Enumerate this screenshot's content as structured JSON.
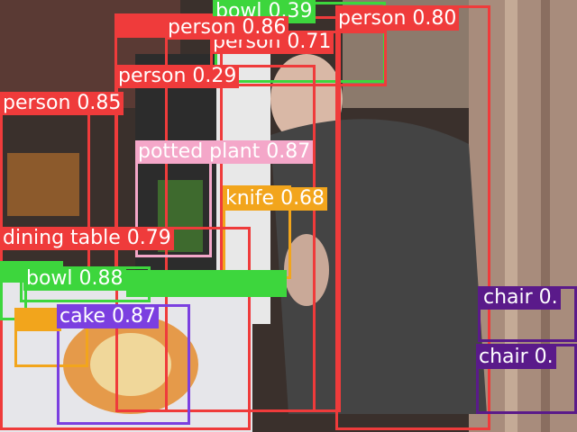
{
  "detections": [
    {
      "label": "bowl 0.39",
      "color": "#3dd63d"
    },
    {
      "label": "person 0.80",
      "color": "#ef3b3b"
    },
    {
      "label": "person 0.86",
      "color": "#ef3b3b"
    },
    {
      "label": "person 0.71",
      "color": "#ef3b3b"
    },
    {
      "label": "person 0.29",
      "color": "#ef3b3b"
    },
    {
      "label": "person 0.85",
      "color": "#ef3b3b"
    },
    {
      "label": "potted plant 0.87",
      "color": "#f4a7c9"
    },
    {
      "label": "knife 0.68",
      "color": "#f2a51c"
    },
    {
      "label": "dining table 0.79",
      "color": "#ef3b3b"
    },
    {
      "label": "bowl 0.88",
      "color": "#3dd63d"
    },
    {
      "label": "cake 0.87",
      "color": "#7b3fe0"
    },
    {
      "label": "chair 0.",
      "color": "#5a1a8a"
    },
    {
      "label": "chair 0.",
      "color": "#5a1a8a"
    }
  ]
}
